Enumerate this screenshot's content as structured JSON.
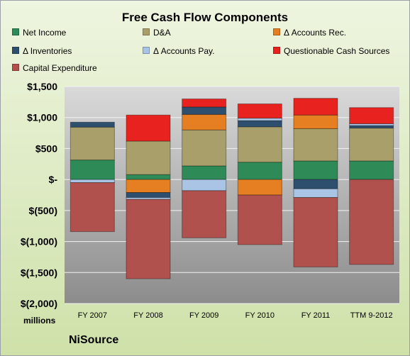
{
  "chart_data": {
    "type": "bar",
    "stacked": true,
    "title": "Free Cash Flow Components",
    "categories": [
      "FY 2007",
      "FY 2008",
      "FY 2009",
      "FY 2010",
      "FY 2011",
      "TTM 9-2012"
    ],
    "ylim": [
      -2000,
      1500
    ],
    "yticks": [
      1500,
      1000,
      500,
      0,
      -500,
      -1000,
      -1500,
      -2000
    ],
    "ytick_labels": [
      "$1,500",
      "$1,000",
      "$500",
      "$-",
      "$(500)",
      "$(1,000)",
      "$(1,500)",
      "$(2,000)"
    ],
    "ylabel": "millions",
    "grid": true,
    "legend_position": "top",
    "series": [
      {
        "name": "Net Income",
        "color": "#2e8b57",
        "values": [
          315,
          80,
          220,
          280,
          300,
          300
        ]
      },
      {
        "name": "D&A",
        "color": "#a89f6b",
        "values": [
          530,
          540,
          580,
          570,
          520,
          530
        ]
      },
      {
        "name": "Δ Accounts Rec.",
        "color": "#e67e22",
        "values": [
          0,
          -210,
          250,
          -250,
          220,
          0
        ]
      },
      {
        "name": "Δ Inventories",
        "color": "#2f4f6f",
        "values": [
          80,
          -80,
          120,
          100,
          -150,
          40
        ]
      },
      {
        "name": "Δ Accounts Pay.",
        "color": "#a9c4e4",
        "values": [
          -50,
          -30,
          -180,
          40,
          -140,
          30
        ]
      },
      {
        "name": "Questionable Cash Sources",
        "color": "#e8231f",
        "values": [
          0,
          420,
          130,
          230,
          270,
          260
        ]
      },
      {
        "name": "Capital Expenditure",
        "color": "#b0514d",
        "values": [
          -790,
          -1280,
          -760,
          -800,
          -1120,
          -1370
        ]
      }
    ]
  },
  "company_label": "NiSource"
}
